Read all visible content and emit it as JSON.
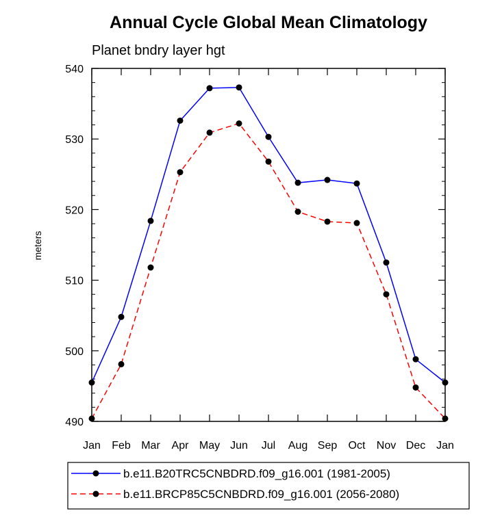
{
  "chart_data": {
    "type": "line",
    "title": "Annual Cycle Global Mean Climatology",
    "subtitle": "Planet bndry layer hgt",
    "xlabel": "",
    "ylabel": "meters",
    "categories": [
      "Jan",
      "Feb",
      "Mar",
      "Apr",
      "May",
      "Jun",
      "Jul",
      "Aug",
      "Sep",
      "Oct",
      "Nov",
      "Dec",
      "Jan"
    ],
    "ylim": [
      490,
      540
    ],
    "yticks": [
      490,
      500,
      510,
      520,
      530,
      540
    ],
    "grid": false,
    "legend_position": "bottom",
    "series": [
      {
        "name": "b.e11.B20TRC5CNBDRD.f09_g16.001 (1981-2005)",
        "color": "#0000ff",
        "dash": "solid",
        "values": [
          495.5,
          504.8,
          518.4,
          532.6,
          537.2,
          537.3,
          530.3,
          523.8,
          524.2,
          523.7,
          512.5,
          498.8,
          495.5
        ]
      },
      {
        "name": "b.e11.BRCP85C5CNBDRD.f09_g16.001 (2056-2080)",
        "color": "#ff0000",
        "dash": "dashed",
        "values": [
          490.4,
          498.1,
          511.8,
          525.3,
          530.9,
          532.2,
          526.8,
          519.7,
          518.3,
          518.1,
          508.0,
          494.8,
          490.4
        ]
      }
    ]
  }
}
